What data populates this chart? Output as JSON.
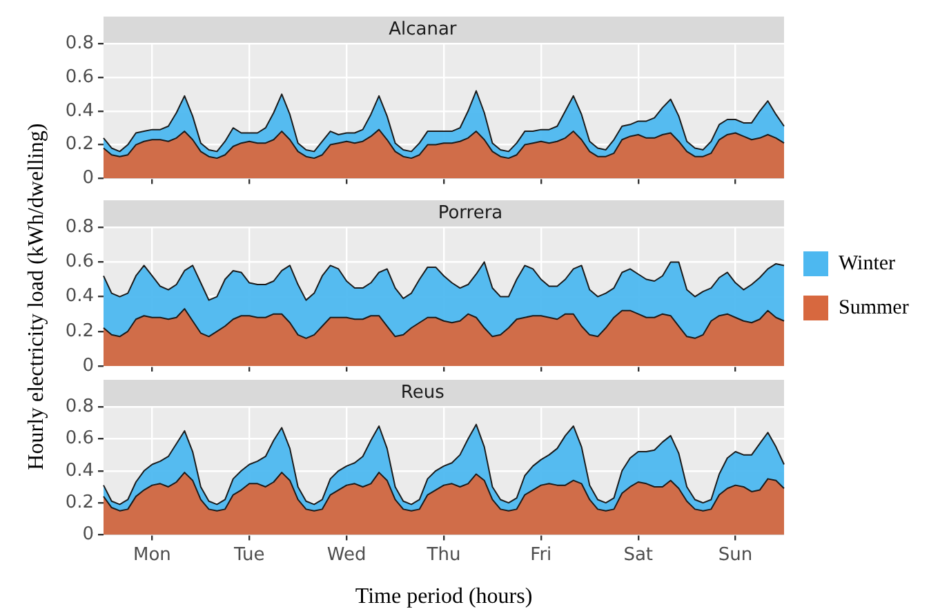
{
  "chart_data": [
    {
      "type": "area",
      "title": "Alcanar",
      "tick_labels": "y",
      "grid": true,
      "categories": [
        null,
        null,
        null,
        null,
        null,
        null,
        null,
        null,
        null,
        null,
        null,
        null,
        null,
        null,
        null,
        null,
        null,
        null,
        null,
        null,
        null,
        null,
        null,
        null,
        null,
        null,
        null,
        null,
        null,
        null,
        null,
        null,
        null,
        null,
        null,
        null,
        null,
        null,
        null,
        null,
        null,
        null,
        null,
        null,
        null,
        null,
        null,
        null,
        null,
        null,
        null,
        null,
        null,
        null,
        null,
        null,
        null,
        null,
        null,
        null,
        null,
        null,
        null,
        null,
        null,
        null,
        null,
        null,
        null,
        null,
        null,
        null,
        null,
        null,
        null,
        null,
        null,
        null,
        null,
        null,
        null,
        null,
        null,
        null,
        null
      ],
      "ylim": [
        0,
        0.8
      ],
      "yticks": [
        0,
        0.2,
        0.4,
        0.6,
        0.8
      ],
      "series": [
        {
          "color": "#4db8f0",
          "values": [
            0.24,
            0.18,
            0.16,
            0.2,
            0.27,
            0.28,
            0.29,
            0.29,
            0.31,
            0.39,
            0.49,
            0.37,
            0.21,
            0.17,
            0.16,
            0.22,
            0.3,
            0.27,
            0.27,
            0.27,
            0.3,
            0.39,
            0.5,
            0.38,
            0.21,
            0.17,
            0.16,
            0.22,
            0.28,
            0.26,
            0.27,
            0.27,
            0.29,
            0.38,
            0.49,
            0.37,
            0.21,
            0.17,
            0.16,
            0.21,
            0.28,
            0.28,
            0.28,
            0.28,
            0.3,
            0.4,
            0.52,
            0.39,
            0.21,
            0.17,
            0.16,
            0.21,
            0.28,
            0.28,
            0.29,
            0.29,
            0.31,
            0.4,
            0.49,
            0.38,
            0.22,
            0.18,
            0.17,
            0.23,
            0.31,
            0.32,
            0.34,
            0.34,
            0.36,
            0.42,
            0.47,
            0.37,
            0.22,
            0.18,
            0.17,
            0.22,
            0.32,
            0.35,
            0.35,
            0.33,
            0.33,
            0.4,
            0.46,
            0.38,
            0.31
          ]
        },
        {
          "color": "#d7683f",
          "values": [
            0.18,
            0.14,
            0.13,
            0.14,
            0.2,
            0.22,
            0.23,
            0.23,
            0.22,
            0.24,
            0.28,
            0.23,
            0.16,
            0.13,
            0.12,
            0.14,
            0.19,
            0.21,
            0.22,
            0.21,
            0.21,
            0.23,
            0.28,
            0.23,
            0.16,
            0.13,
            0.12,
            0.14,
            0.2,
            0.21,
            0.22,
            0.21,
            0.22,
            0.25,
            0.29,
            0.23,
            0.16,
            0.13,
            0.12,
            0.14,
            0.2,
            0.2,
            0.21,
            0.21,
            0.22,
            0.24,
            0.28,
            0.23,
            0.16,
            0.13,
            0.12,
            0.14,
            0.2,
            0.21,
            0.22,
            0.21,
            0.22,
            0.24,
            0.28,
            0.23,
            0.16,
            0.13,
            0.13,
            0.15,
            0.23,
            0.25,
            0.26,
            0.24,
            0.24,
            0.26,
            0.27,
            0.22,
            0.16,
            0.13,
            0.13,
            0.15,
            0.23,
            0.26,
            0.27,
            0.25,
            0.23,
            0.24,
            0.26,
            0.24,
            0.21
          ]
        }
      ]
    },
    {
      "type": "area",
      "title": "Porrera",
      "tick_labels": "y",
      "grid": true,
      "legend": "right",
      "ylabel": "Hourly electricity load (kWh/dwelling)",
      "categories": [
        null,
        null,
        null,
        null,
        null,
        null,
        null,
        null,
        null,
        null,
        null,
        null,
        null,
        null,
        null,
        null,
        null,
        null,
        null,
        null,
        null,
        null,
        null,
        null,
        null,
        null,
        null,
        null,
        null,
        null,
        null,
        null,
        null,
        null,
        null,
        null,
        null,
        null,
        null,
        null,
        null,
        null,
        null,
        null,
        null,
        null,
        null,
        null,
        null,
        null,
        null,
        null,
        null,
        null,
        null,
        null,
        null,
        null,
        null,
        null,
        null,
        null,
        null,
        null,
        null,
        null,
        null,
        null,
        null,
        null,
        null,
        null,
        null,
        null,
        null,
        null,
        null,
        null,
        null,
        null,
        null,
        null,
        null,
        null,
        null
      ],
      "ylim": [
        0,
        0.8
      ],
      "yticks": [
        0,
        0.2,
        0.4,
        0.6,
        0.8
      ],
      "series": [
        {
          "name": "Winter",
          "color": "#4db8f0",
          "values": [
            0.52,
            0.42,
            0.4,
            0.42,
            0.52,
            0.58,
            0.52,
            0.46,
            0.44,
            0.47,
            0.55,
            0.58,
            0.48,
            0.38,
            0.4,
            0.5,
            0.55,
            0.54,
            0.48,
            0.47,
            0.47,
            0.49,
            0.55,
            0.58,
            0.47,
            0.38,
            0.42,
            0.52,
            0.58,
            0.56,
            0.49,
            0.45,
            0.45,
            0.48,
            0.54,
            0.56,
            0.45,
            0.39,
            0.42,
            0.5,
            0.57,
            0.57,
            0.52,
            0.48,
            0.45,
            0.47,
            0.53,
            0.6,
            0.45,
            0.4,
            0.4,
            0.5,
            0.58,
            0.56,
            0.5,
            0.46,
            0.46,
            0.5,
            0.56,
            0.58,
            0.44,
            0.4,
            0.42,
            0.45,
            0.54,
            0.56,
            0.53,
            0.5,
            0.49,
            0.52,
            0.6,
            0.6,
            0.44,
            0.4,
            0.43,
            0.45,
            0.51,
            0.54,
            0.48,
            0.44,
            0.47,
            0.51,
            0.56,
            0.59,
            0.58
          ]
        },
        {
          "name": "Summer",
          "color": "#d7683f",
          "values": [
            0.22,
            0.18,
            0.17,
            0.2,
            0.27,
            0.29,
            0.28,
            0.28,
            0.27,
            0.28,
            0.33,
            0.26,
            0.19,
            0.17,
            0.2,
            0.23,
            0.27,
            0.29,
            0.29,
            0.28,
            0.28,
            0.3,
            0.3,
            0.25,
            0.18,
            0.16,
            0.18,
            0.23,
            0.28,
            0.28,
            0.28,
            0.27,
            0.27,
            0.29,
            0.29,
            0.23,
            0.17,
            0.18,
            0.22,
            0.25,
            0.28,
            0.28,
            0.26,
            0.25,
            0.26,
            0.3,
            0.28,
            0.22,
            0.17,
            0.18,
            0.22,
            0.27,
            0.28,
            0.29,
            0.29,
            0.28,
            0.27,
            0.3,
            0.3,
            0.23,
            0.18,
            0.17,
            0.22,
            0.28,
            0.32,
            0.32,
            0.3,
            0.28,
            0.28,
            0.3,
            0.29,
            0.23,
            0.17,
            0.16,
            0.18,
            0.26,
            0.29,
            0.3,
            0.28,
            0.26,
            0.25,
            0.27,
            0.32,
            0.28,
            0.26
          ]
        }
      ]
    },
    {
      "type": "area",
      "title": "Reus",
      "grid": true,
      "xlabel": "Time period (hours)",
      "categories": [
        null,
        null,
        null,
        null,
        null,
        null,
        "Mon",
        null,
        null,
        null,
        null,
        null,
        null,
        null,
        null,
        null,
        null,
        null,
        "Tue",
        null,
        null,
        null,
        null,
        null,
        null,
        null,
        null,
        null,
        null,
        null,
        "Wed",
        null,
        null,
        null,
        null,
        null,
        null,
        null,
        null,
        null,
        null,
        null,
        "Thu",
        null,
        null,
        null,
        null,
        null,
        null,
        null,
        null,
        null,
        null,
        null,
        "Fri",
        null,
        null,
        null,
        null,
        null,
        null,
        null,
        null,
        null,
        null,
        null,
        "Sat",
        null,
        null,
        null,
        null,
        null,
        null,
        null,
        null,
        null,
        null,
        null,
        "Sun",
        null,
        null,
        null,
        null,
        null,
        null
      ],
      "ylim": [
        0,
        0.8
      ],
      "yticks": [
        0,
        0.2,
        0.4,
        0.6,
        0.8
      ],
      "series": [
        {
          "color": "#4db8f0",
          "values": [
            0.31,
            0.21,
            0.19,
            0.22,
            0.33,
            0.4,
            0.44,
            0.46,
            0.49,
            0.57,
            0.65,
            0.52,
            0.3,
            0.21,
            0.19,
            0.22,
            0.35,
            0.4,
            0.44,
            0.46,
            0.49,
            0.59,
            0.67,
            0.54,
            0.3,
            0.21,
            0.19,
            0.22,
            0.35,
            0.4,
            0.43,
            0.45,
            0.49,
            0.59,
            0.68,
            0.54,
            0.3,
            0.21,
            0.19,
            0.22,
            0.35,
            0.4,
            0.43,
            0.45,
            0.5,
            0.6,
            0.69,
            0.55,
            0.3,
            0.22,
            0.2,
            0.23,
            0.37,
            0.43,
            0.47,
            0.5,
            0.54,
            0.62,
            0.68,
            0.55,
            0.31,
            0.22,
            0.2,
            0.23,
            0.4,
            0.48,
            0.52,
            0.52,
            0.53,
            0.58,
            0.62,
            0.51,
            0.3,
            0.22,
            0.2,
            0.22,
            0.38,
            0.48,
            0.52,
            0.5,
            0.5,
            0.57,
            0.64,
            0.55,
            0.44
          ]
        },
        {
          "color": "#d7683f",
          "values": [
            0.24,
            0.17,
            0.15,
            0.16,
            0.24,
            0.28,
            0.31,
            0.32,
            0.3,
            0.33,
            0.39,
            0.34,
            0.22,
            0.16,
            0.15,
            0.16,
            0.25,
            0.28,
            0.32,
            0.32,
            0.3,
            0.33,
            0.39,
            0.34,
            0.22,
            0.16,
            0.15,
            0.16,
            0.25,
            0.28,
            0.31,
            0.32,
            0.3,
            0.32,
            0.39,
            0.34,
            0.22,
            0.16,
            0.15,
            0.16,
            0.25,
            0.28,
            0.31,
            0.32,
            0.3,
            0.32,
            0.38,
            0.34,
            0.22,
            0.16,
            0.15,
            0.16,
            0.25,
            0.28,
            0.31,
            0.32,
            0.31,
            0.31,
            0.34,
            0.32,
            0.22,
            0.16,
            0.15,
            0.16,
            0.26,
            0.3,
            0.33,
            0.32,
            0.3,
            0.3,
            0.34,
            0.29,
            0.21,
            0.16,
            0.15,
            0.16,
            0.25,
            0.29,
            0.31,
            0.3,
            0.27,
            0.28,
            0.35,
            0.34,
            0.29
          ]
        }
      ]
    }
  ]
}
